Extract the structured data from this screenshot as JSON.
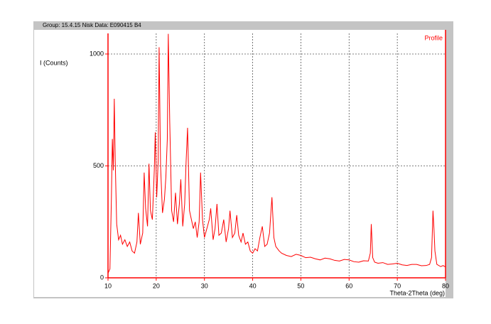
{
  "chart_data": {
    "type": "line",
    "title": "Group: 15.4.15 Nisk  Data: E090415 B4",
    "y_label": "I (Counts)",
    "x_label": "Theta-2Theta (deg)",
    "xlim": [
      10,
      80
    ],
    "xticks": [
      10,
      20,
      30,
      40,
      50,
      60,
      70,
      80
    ],
    "ylim": [
      0,
      1092
    ],
    "yticks": [
      0,
      500,
      1000
    ],
    "grid": true,
    "legend": "top-right",
    "x": [
      10,
      10.4,
      10.7,
      10.9,
      11.1,
      11.3,
      11.5,
      11.8,
      12.2,
      12.6,
      13,
      13.5,
      14,
      14.5,
      15,
      15.5,
      16,
      16.3,
      16.7,
      17.2,
      17.5,
      17.8,
      18.2,
      18.5,
      18.8,
      19.2,
      19.6,
      19.8,
      20.1,
      20.4,
      20.6,
      20.9,
      21.3,
      21.7,
      22,
      22.3,
      22.5,
      22.8,
      23.2,
      23.6,
      24,
      24.4,
      24.8,
      25.1,
      25.5,
      25.9,
      26.2,
      26.5,
      26.9,
      27.3,
      27.7,
      28.1,
      28.5,
      28.9,
      29.2,
      29.6,
      30,
      30.5,
      31,
      31.3,
      31.8,
      32.2,
      32.6,
      33,
      33.5,
      34,
      34.5,
      35,
      35.3,
      35.8,
      36.3,
      36.7,
      37.1,
      37.6,
      38,
      38.5,
      39,
      39.5,
      40,
      40.5,
      41,
      41.5,
      42,
      42.5,
      43,
      43.5,
      44,
      44.4,
      44.8,
      45.5,
      46,
      47,
      48,
      49,
      50,
      51,
      52,
      53,
      54,
      55,
      56,
      57,
      58,
      59,
      60,
      61,
      62,
      63,
      64,
      64.4,
      64.6,
      64.9,
      65.3,
      66,
      67,
      68,
      69,
      70,
      71,
      72,
      73,
      74,
      75,
      76,
      76.7,
      77.1,
      77.4,
      77.6,
      77.8,
      78.2,
      79,
      79.5,
      80
    ],
    "series": [
      {
        "name": "Profile",
        "color": "#ff0000",
        "values": [
          20,
          40,
          350,
          620,
          480,
          800,
          520,
          240,
          170,
          190,
          150,
          170,
          140,
          160,
          120,
          110,
          160,
          290,
          150,
          200,
          470,
          310,
          230,
          510,
          300,
          260,
          480,
          650,
          360,
          520,
          1030,
          500,
          290,
          350,
          450,
          620,
          1090,
          700,
          300,
          250,
          380,
          240,
          330,
          440,
          230,
          330,
          520,
          670,
          300,
          260,
          220,
          250,
          180,
          250,
          470,
          260,
          180,
          220,
          260,
          310,
          170,
          220,
          330,
          190,
          200,
          260,
          160,
          220,
          300,
          180,
          200,
          280,
          190,
          160,
          200,
          150,
          160,
          120,
          110,
          130,
          120,
          180,
          230,
          140,
          150,
          200,
          360,
          180,
          140,
          120,
          110,
          100,
          95,
          105,
          100,
          90,
          92,
          85,
          80,
          88,
          85,
          78,
          75,
          82,
          80,
          72,
          70,
          76,
          75,
          110,
          240,
          90,
          70,
          65,
          68,
          60,
          62,
          65,
          58,
          55,
          60,
          60,
          54,
          55,
          60,
          90,
          300,
          220,
          120,
          60,
          50,
          55,
          48
        ]
      }
    ]
  }
}
